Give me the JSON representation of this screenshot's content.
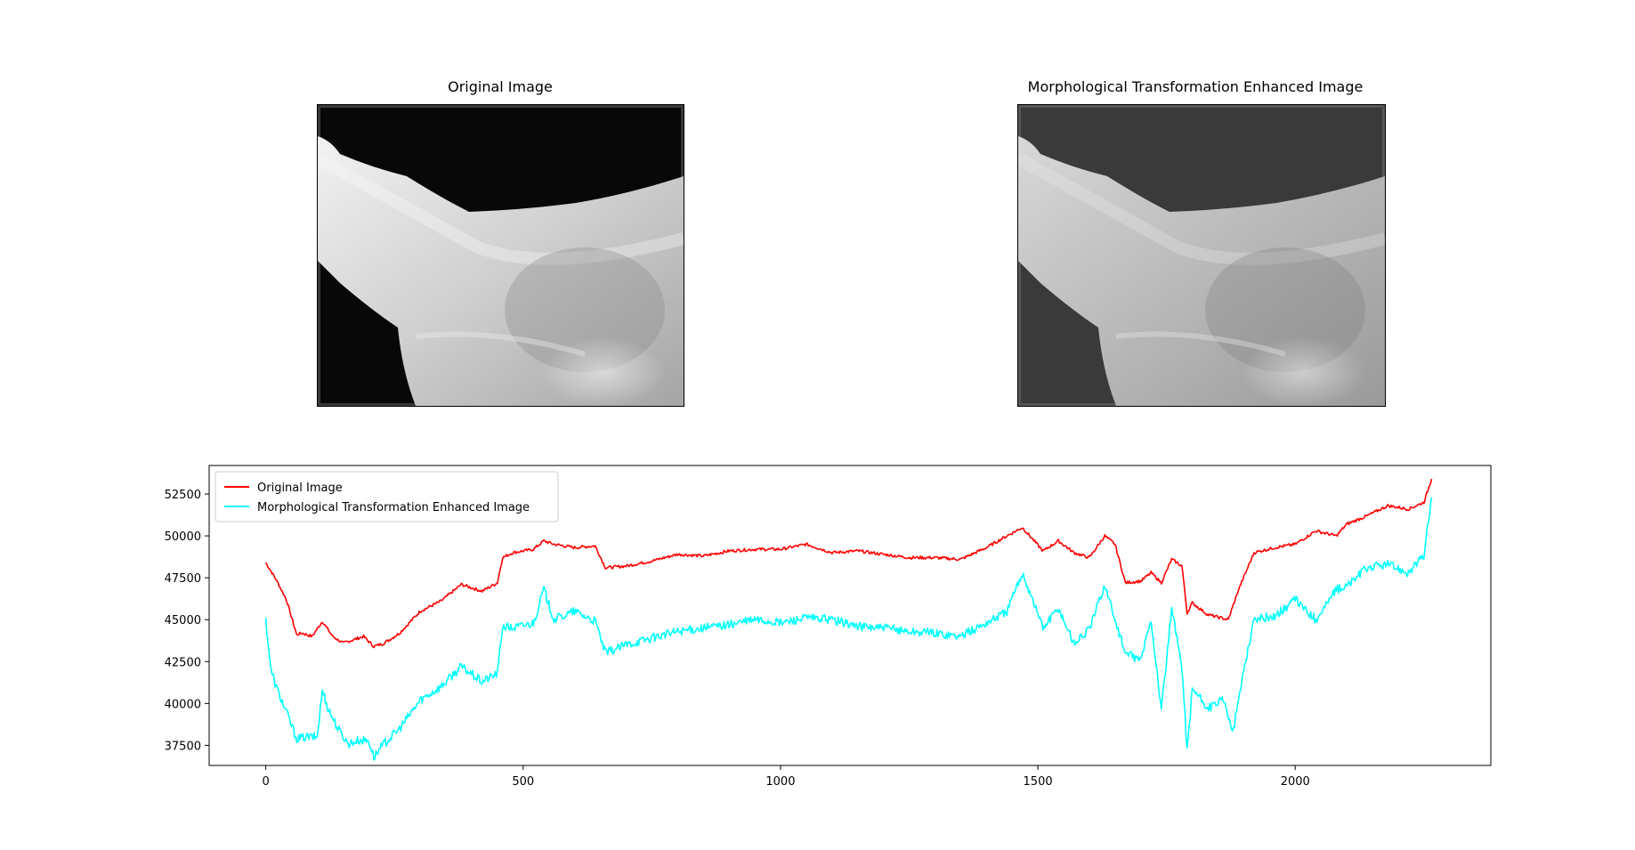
{
  "panels": {
    "left_title": "Original Image",
    "right_title": "Morphological Transformation Enhanced Image"
  },
  "chart_data": {
    "type": "line",
    "title": "",
    "xlabel": "",
    "ylabel": "",
    "xlim": [
      -110,
      2380
    ],
    "ylim": [
      36300,
      54200
    ],
    "xticks": [
      0,
      500,
      1000,
      1500,
      2000
    ],
    "yticks": [
      37500,
      40000,
      42500,
      45000,
      47500,
      50000,
      52500
    ],
    "grid": false,
    "legend_position": "top-left",
    "series": [
      {
        "name": "Original Image",
        "color": "#ff0000",
        "x": [
          0,
          20,
          40,
          60,
          70,
          90,
          110,
          130,
          150,
          170,
          190,
          210,
          230,
          260,
          300,
          340,
          380,
          420,
          450,
          460,
          480,
          520,
          540,
          560,
          600,
          640,
          660,
          700,
          750,
          800,
          850,
          900,
          950,
          1000,
          1050,
          1100,
          1150,
          1200,
          1250,
          1300,
          1350,
          1400,
          1440,
          1470,
          1490,
          1510,
          1540,
          1570,
          1600,
          1630,
          1650,
          1670,
          1700,
          1720,
          1740,
          1760,
          1780,
          1790,
          1800,
          1830,
          1870,
          1890,
          1920,
          1960,
          2000,
          2040,
          2080,
          2100,
          2140,
          2180,
          2220,
          2250,
          2265
        ],
        "values": [
          48400,
          47400,
          46200,
          44100,
          44200,
          44000,
          44900,
          44000,
          43600,
          43800,
          44000,
          43400,
          43600,
          44200,
          45500,
          46100,
          47100,
          46700,
          47200,
          48700,
          49000,
          49200,
          49700,
          49500,
          49300,
          49400,
          48100,
          48200,
          48500,
          48900,
          48800,
          49100,
          49200,
          49200,
          49500,
          49000,
          49100,
          48900,
          48700,
          48700,
          48600,
          49300,
          50000,
          50500,
          49800,
          49100,
          49700,
          49000,
          48700,
          50000,
          49500,
          47200,
          47300,
          47800,
          47200,
          48600,
          48200,
          45400,
          46000,
          45300,
          45000,
          46800,
          49000,
          49300,
          49500,
          50300,
          50000,
          50700,
          51200,
          51800,
          51600,
          52000,
          53400
        ]
      },
      {
        "name": "Morphological Transformation Enhanced Image",
        "color": "#00ffff",
        "x": [
          0,
          10,
          20,
          40,
          60,
          80,
          100,
          110,
          120,
          140,
          160,
          180,
          200,
          210,
          230,
          260,
          300,
          340,
          380,
          420,
          450,
          460,
          480,
          520,
          540,
          560,
          600,
          640,
          660,
          700,
          750,
          800,
          850,
          900,
          950,
          1000,
          1050,
          1100,
          1150,
          1200,
          1250,
          1300,
          1350,
          1400,
          1440,
          1470,
          1490,
          1510,
          1540,
          1570,
          1600,
          1630,
          1650,
          1670,
          1700,
          1720,
          1740,
          1760,
          1780,
          1790,
          1800,
          1830,
          1860,
          1880,
          1900,
          1920,
          1960,
          2000,
          2040,
          2080,
          2100,
          2140,
          2180,
          2220,
          2250,
          2265
        ],
        "values": [
          45000,
          42000,
          41000,
          39500,
          37900,
          38000,
          38000,
          40800,
          39800,
          38500,
          37600,
          37800,
          37800,
          36800,
          37600,
          38500,
          40200,
          41000,
          42200,
          41300,
          41800,
          44600,
          44500,
          44800,
          46800,
          45000,
          45500,
          44900,
          43000,
          43500,
          43900,
          44300,
          44500,
          44700,
          45000,
          44800,
          45100,
          45000,
          44600,
          44500,
          44300,
          44200,
          44000,
          44800,
          45500,
          47800,
          46200,
          44500,
          45700,
          43600,
          44400,
          47100,
          45000,
          43000,
          42600,
          45000,
          39600,
          45600,
          42200,
          37200,
          40900,
          39700,
          40200,
          38400,
          42000,
          45000,
          45200,
          46200,
          45000,
          46800,
          47000,
          48100,
          48300,
          47800,
          48800,
          52300
        ]
      }
    ]
  }
}
